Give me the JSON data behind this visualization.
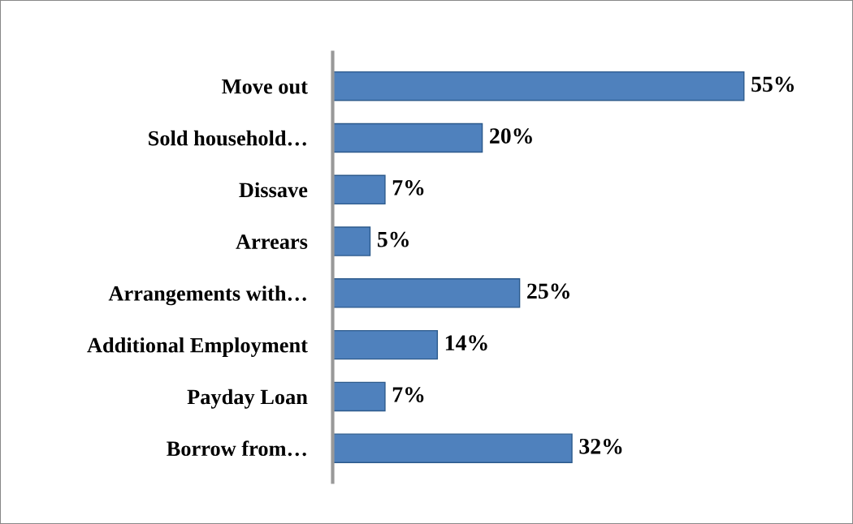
{
  "chart_data": {
    "type": "bar",
    "orientation": "horizontal",
    "categories": [
      "Move out",
      "Sold household…",
      "Dissave",
      "Arrears",
      "Arrangements with…",
      "Additional Employment",
      "Payday Loan",
      "Borrow from…"
    ],
    "values": [
      55,
      20,
      7,
      5,
      25,
      14,
      7,
      32
    ],
    "value_labels": [
      "55%",
      "20%",
      "7%",
      "5%",
      "25%",
      "14%",
      "7%",
      "32%"
    ],
    "color": "#4f81bd",
    "grid": false,
    "legend": false
  }
}
